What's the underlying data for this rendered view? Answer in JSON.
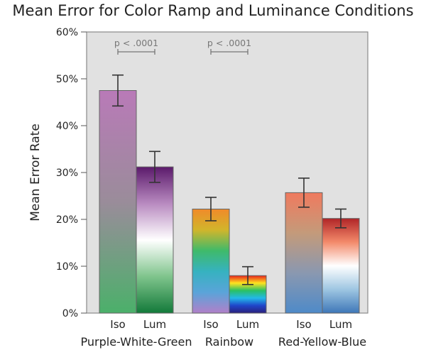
{
  "chart_data": {
    "type": "bar",
    "title": "Mean Error for Color Ramp and Luminance Conditions",
    "ylabel": "Mean Error Rate",
    "xlabel": "",
    "ylim": [
      0,
      60
    ],
    "yticks": [
      "0%",
      "10%",
      "20%",
      "30%",
      "40%",
      "50%",
      "60%"
    ],
    "grid": false,
    "groups": [
      {
        "name": "Purple-White-Green",
        "bars": [
          {
            "label": "Iso",
            "value": 47.5,
            "error": 3.3,
            "colors": [
              "#b97ab8",
              "#9a8c9a",
              "#4bb06a"
            ]
          },
          {
            "label": "Lum",
            "value": 31.2,
            "error": 3.3,
            "colors": [
              "#5b1a6b",
              "#b88ac0",
              "#ffffff",
              "#7fc48c",
              "#137a3a"
            ]
          }
        ],
        "annotation": "p < .0001"
      },
      {
        "name": "Rainbow",
        "bars": [
          {
            "label": "Iso",
            "value": 22.2,
            "error": 2.5,
            "colors": [
              "#f08a2a",
              "#d2b52b",
              "#3fba6a",
              "#36b2c0",
              "#5aa4d9",
              "#b180c9"
            ]
          },
          {
            "label": "Lum",
            "value": 8.0,
            "error": 1.9,
            "colors": [
              "#e8211b",
              "#ffe31f",
              "#29c064",
              "#23b9e8",
              "#1f45c9",
              "#2a207c"
            ]
          }
        ],
        "annotation": "p < .0001"
      },
      {
        "name": "Red-Yellow-Blue",
        "bars": [
          {
            "label": "Iso",
            "value": 25.7,
            "error": 3.1,
            "colors": [
              "#f07a5e",
              "#c49a7a",
              "#8a98b0",
              "#4e8ac8"
            ]
          },
          {
            "label": "Lum",
            "value": 20.2,
            "error": 2.0,
            "colors": [
              "#b02427",
              "#f38a6a",
              "#ffffff",
              "#9ec6e2",
              "#3e77b8"
            ]
          }
        ],
        "annotation": ""
      }
    ]
  }
}
